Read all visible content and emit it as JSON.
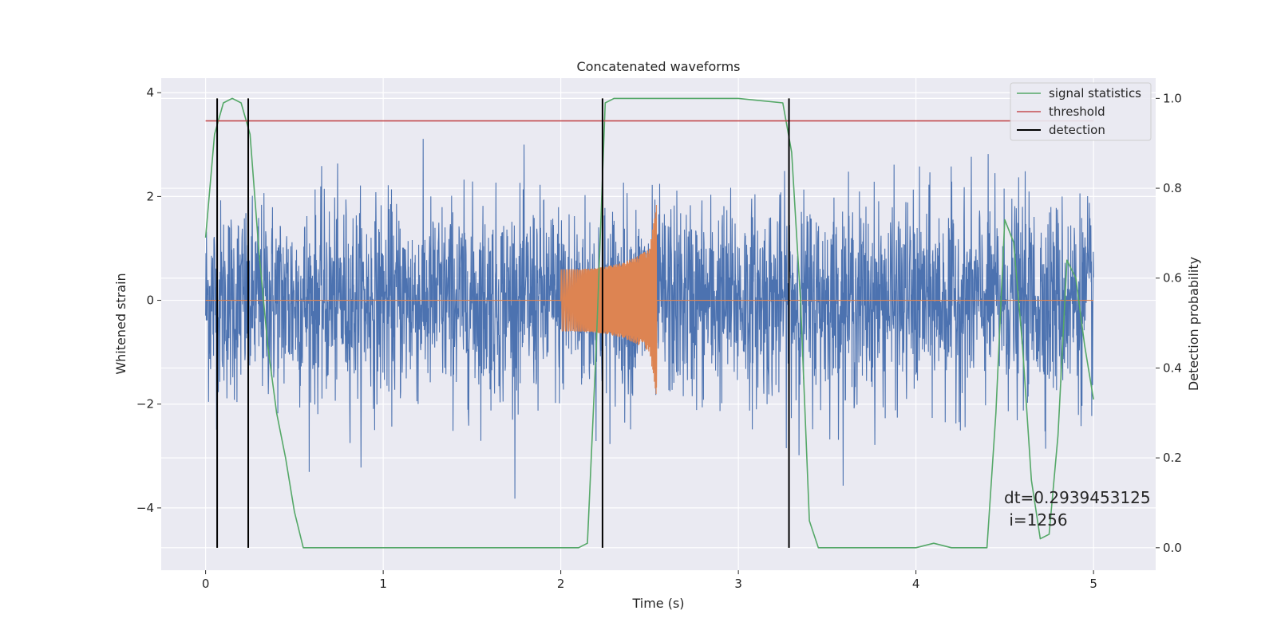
{
  "chart_data": {
    "type": "line",
    "title": "Concatenated waveforms",
    "xlabel": "Time (s)",
    "ylabel": "Whitened strain",
    "y2label": "Detection probability",
    "xlim": [
      -0.25,
      5.35
    ],
    "ylim": [
      -5.2,
      4.28
    ],
    "y2lim": [
      -0.05,
      1.045
    ],
    "xticks": [
      0,
      1,
      2,
      3,
      4,
      5
    ],
    "yticks": [
      -4,
      -2,
      0,
      2,
      4
    ],
    "y2ticks": [
      0.0,
      0.2,
      0.4,
      0.6,
      0.8,
      1.0
    ],
    "grid": true,
    "legend_position": "top-right",
    "colors": {
      "background": "#eaeaf2",
      "strain": "#4c72b0",
      "injection": "#dd8452",
      "signal_statistics": "#55a868",
      "threshold": "#c44e52",
      "detection": "#000000"
    },
    "series": [
      {
        "name": "signal statistics",
        "axis": "right",
        "x": [
          0.0,
          0.05,
          0.1,
          0.15,
          0.2,
          0.25,
          0.3,
          0.35,
          0.4,
          0.45,
          0.5,
          0.55,
          0.6,
          1.0,
          1.5,
          2.0,
          2.1,
          2.15,
          2.2,
          2.25,
          2.3,
          2.5,
          3.0,
          3.25,
          3.3,
          3.35,
          3.4,
          3.45,
          3.5,
          4.0,
          4.1,
          4.2,
          4.4,
          4.45,
          4.5,
          4.55,
          4.6,
          4.65,
          4.7,
          4.75,
          4.8,
          4.85,
          4.9,
          4.95,
          5.0
        ],
        "y": [
          0.69,
          0.92,
          0.99,
          1.0,
          0.99,
          0.92,
          0.66,
          0.45,
          0.3,
          0.2,
          0.08,
          0.0,
          0.0,
          0.0,
          0.0,
          0.0,
          0.0,
          0.01,
          0.45,
          0.99,
          1.0,
          1.0,
          1.0,
          0.99,
          0.88,
          0.55,
          0.06,
          0.0,
          0.0,
          0.0,
          0.01,
          0.0,
          0.0,
          0.3,
          0.73,
          0.68,
          0.45,
          0.15,
          0.02,
          0.03,
          0.25,
          0.64,
          0.6,
          0.45,
          0.33
        ]
      },
      {
        "name": "threshold",
        "axis": "right",
        "x": [
          0.0,
          5.0
        ],
        "y": [
          0.95,
          0.95
        ]
      },
      {
        "name": "detection",
        "axis": "right",
        "x": [
          0.065,
          0.24,
          2.235,
          3.285
        ],
        "y_range": [
          0.0,
          1.0
        ]
      }
    ],
    "annotations": [
      "dt=0.2939453125",
      " i=1256"
    ]
  }
}
